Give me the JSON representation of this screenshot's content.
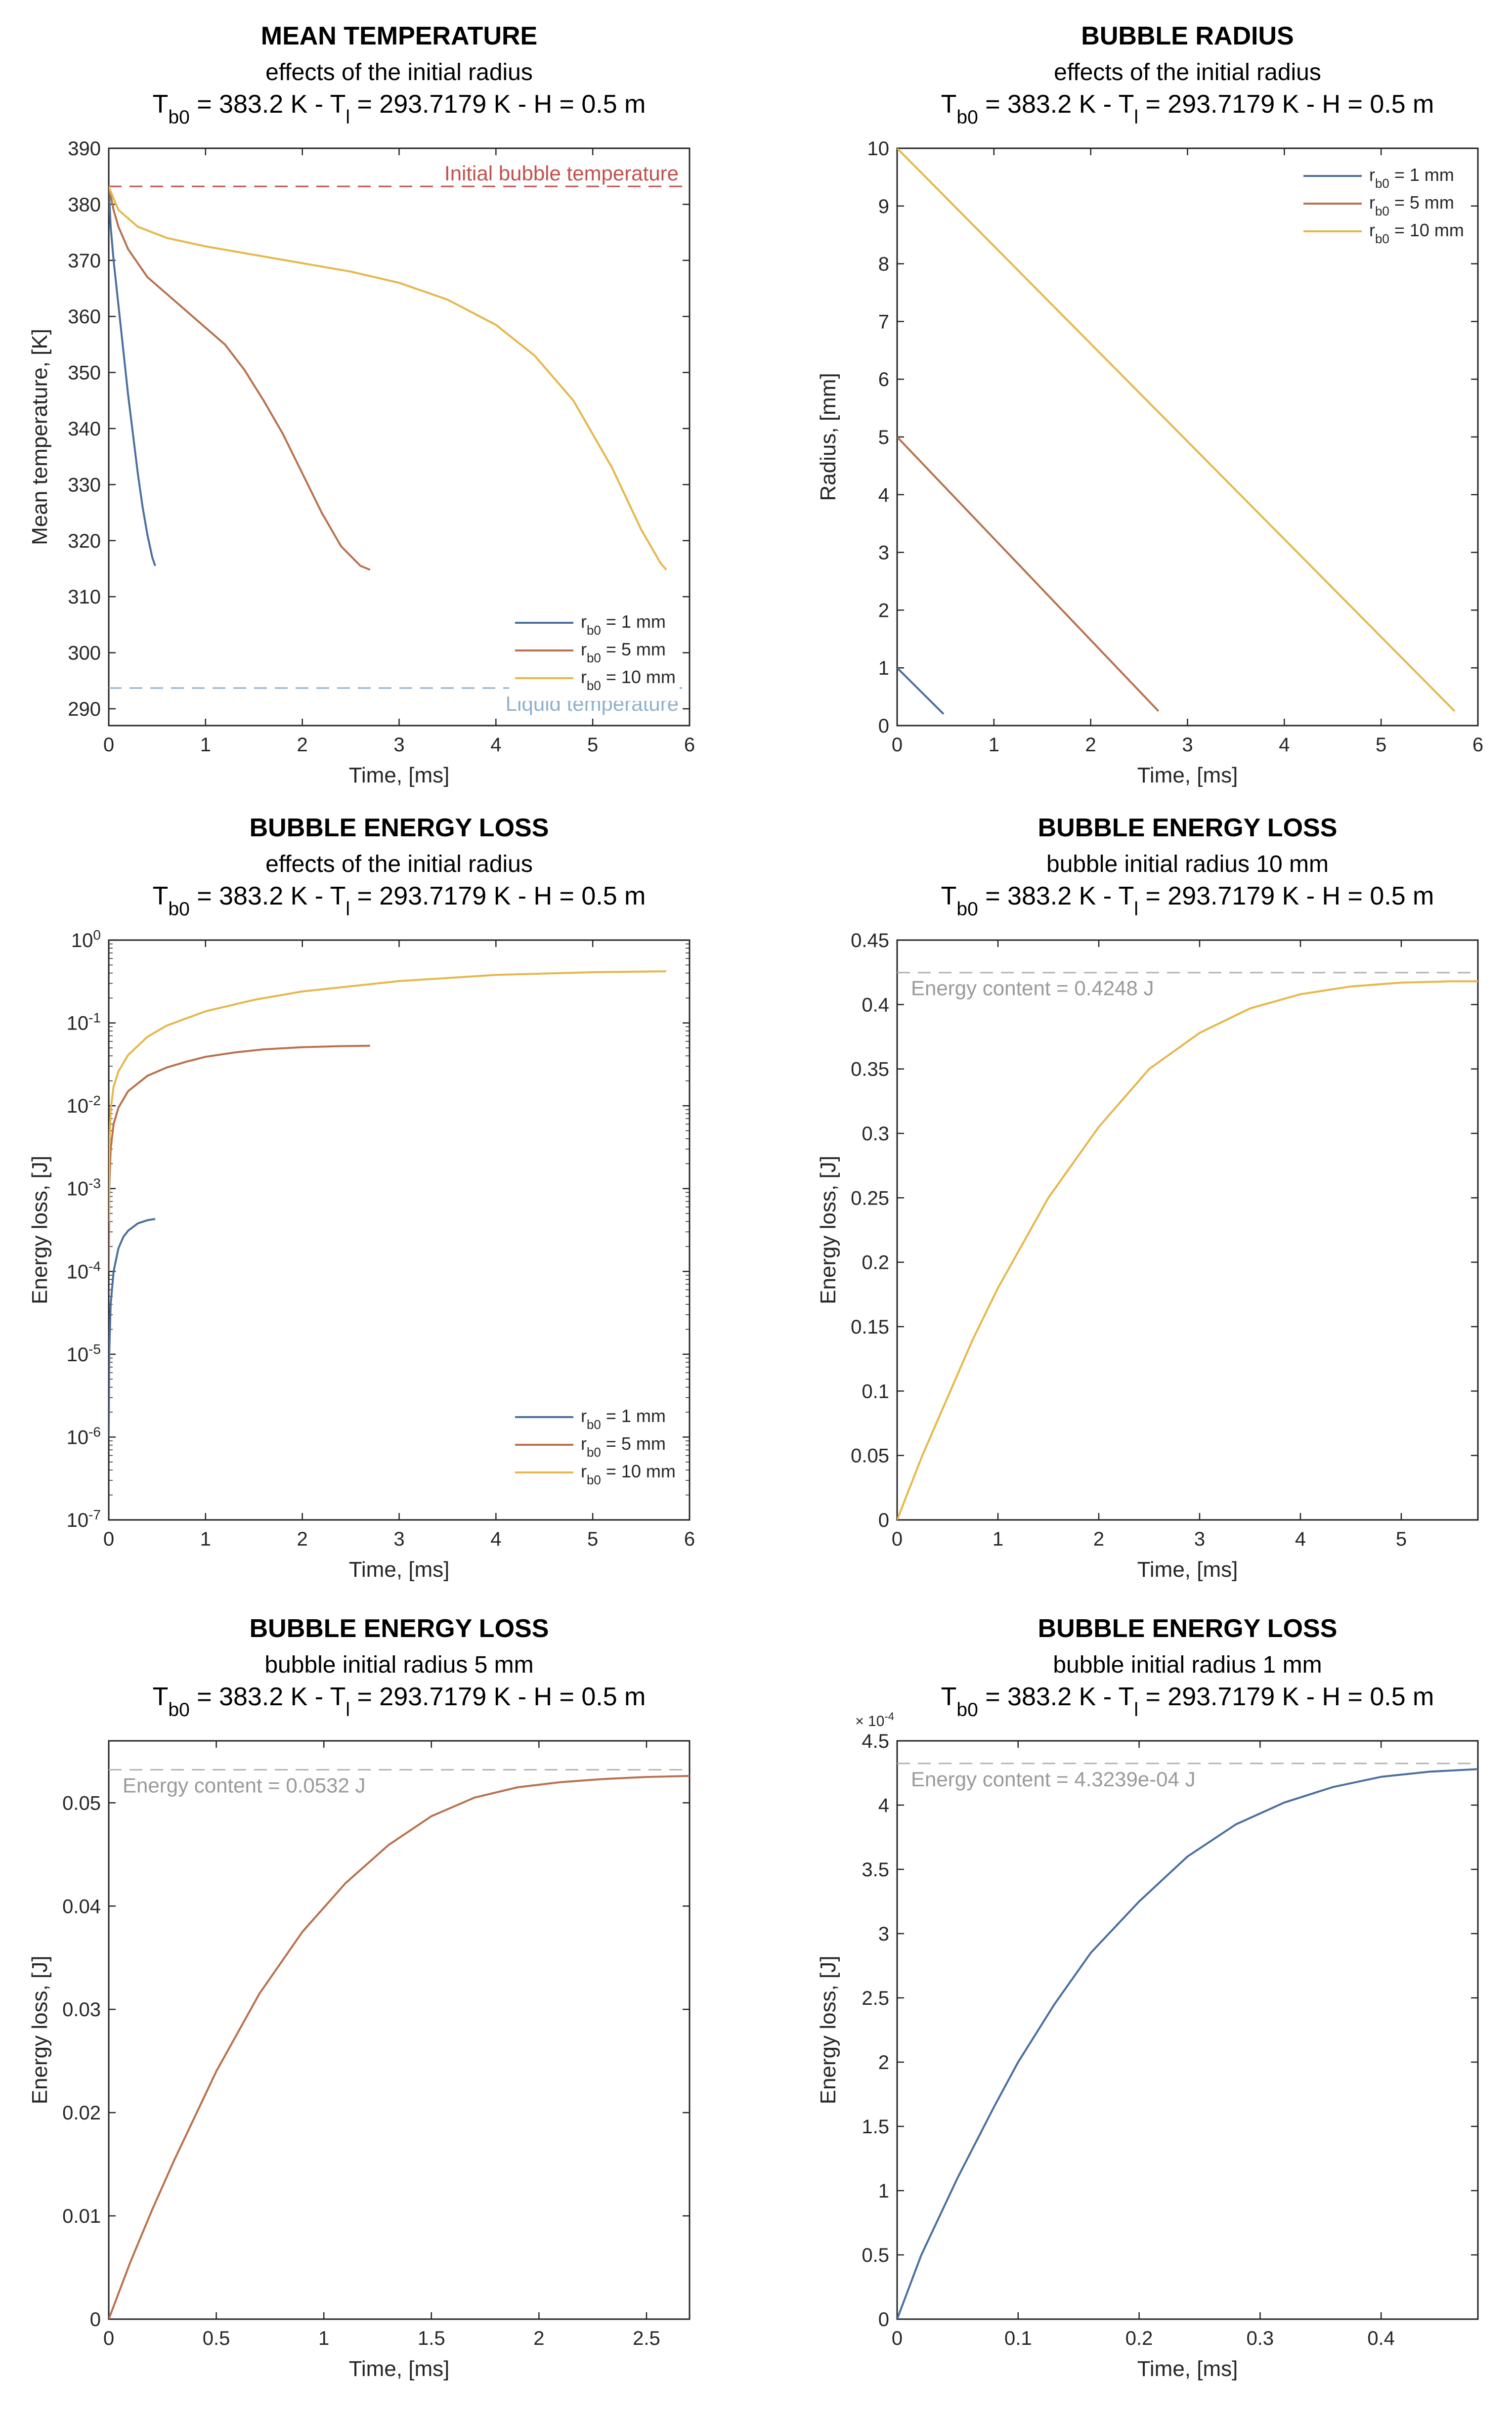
{
  "colors": {
    "blue": "#4a6f9e",
    "orange": "#b9714d",
    "yellow": "#e6b74a",
    "ref_red": "#c0504d",
    "ref_blue": "#8fb0cc",
    "ref_gray": "#b4b4b4",
    "annotation_gray": "#9a9a9a"
  },
  "chart_data": [
    {
      "id": "mean_temperature",
      "type": "line",
      "title": "MEAN TEMPERATURE",
      "subtitle": "effects of the initial radius",
      "conditions": {
        "t_sub": "b0",
        "t_val": " = 383.2 K - T",
        "l_sub": "l",
        "l_val": " = 293.7179 K  - H = 0.5 m"
      },
      "xlabel": "Time, [ms]",
      "ylabel": "Mean temperature, [K]",
      "xlim": [
        0,
        6
      ],
      "ylim": [
        287,
        390
      ],
      "yscale": "linear",
      "xticks": [
        0,
        1,
        2,
        3,
        4,
        5,
        6
      ],
      "yticks": [
        290,
        300,
        310,
        320,
        330,
        340,
        350,
        360,
        370,
        380,
        390
      ],
      "legend": {
        "position": "bottom-right",
        "entries": [
          {
            "sub": "b0",
            "suffix": " = 1 mm",
            "color": "blue"
          },
          {
            "sub": "b0",
            "suffix": " = 5 mm",
            "color": "orange"
          },
          {
            "sub": "b0",
            "suffix": " = 10 mm",
            "color": "yellow"
          }
        ]
      },
      "reference_lines": [
        {
          "y": 383.2,
          "label": "Initial bubble temperature",
          "color": "ref_red",
          "label_align": "right",
          "label_side": "above"
        },
        {
          "y": 293.7,
          "label": "Liquid temperature",
          "color": "ref_blue",
          "label_align": "right",
          "label_side": "below"
        }
      ],
      "series": [
        {
          "name": "r_b0 = 1 mm",
          "color": "blue",
          "x": [
            0,
            0.02,
            0.05,
            0.1,
            0.15,
            0.2,
            0.25,
            0.3,
            0.35,
            0.4,
            0.45,
            0.48
          ],
          "y": [
            383.2,
            376,
            370,
            362,
            354,
            346,
            339,
            332,
            326,
            321,
            317,
            315.5
          ]
        },
        {
          "name": "r_b0 = 5 mm",
          "color": "orange",
          "x": [
            0,
            0.05,
            0.1,
            0.2,
            0.4,
            0.6,
            0.8,
            1.0,
            1.2,
            1.4,
            1.6,
            1.8,
            2.0,
            2.2,
            2.4,
            2.6,
            2.7
          ],
          "y": [
            383.2,
            379,
            376,
            372,
            367,
            364,
            361,
            358,
            355,
            350.5,
            345,
            339,
            332,
            325,
            319,
            315.5,
            314.8
          ]
        },
        {
          "name": "r_b0 = 10 mm",
          "color": "yellow",
          "x": [
            0,
            0.05,
            0.1,
            0.3,
            0.6,
            1.0,
            1.5,
            2.0,
            2.5,
            3.0,
            3.5,
            4.0,
            4.4,
            4.8,
            5.2,
            5.5,
            5.7,
            5.76
          ],
          "y": [
            383.2,
            381,
            379,
            376,
            374,
            372.5,
            371,
            369.5,
            368,
            366,
            363,
            358.5,
            353,
            345,
            333,
            322,
            316,
            314.8
          ]
        }
      ]
    },
    {
      "id": "bubble_radius",
      "type": "line",
      "title": "BUBBLE RADIUS",
      "subtitle": "effects of the initial radius",
      "conditions": {
        "t_sub": "b0",
        "t_val": " = 383.2 K - T",
        "l_sub": "l",
        "l_val": " = 293.7179 K  - H = 0.5 m"
      },
      "xlabel": "Time, [ms]",
      "ylabel": "Radius, [mm]",
      "xlim": [
        0,
        6
      ],
      "ylim": [
        0,
        10
      ],
      "yscale": "linear",
      "xticks": [
        0,
        1,
        2,
        3,
        4,
        5,
        6
      ],
      "yticks": [
        0,
        1,
        2,
        3,
        4,
        5,
        6,
        7,
        8,
        9,
        10
      ],
      "legend": {
        "position": "top-right",
        "entries": [
          {
            "sub": "b0",
            "suffix": " = 1 mm",
            "color": "blue"
          },
          {
            "sub": "b0",
            "suffix": " = 5 mm",
            "color": "orange"
          },
          {
            "sub": "b0",
            "suffix": " = 10 mm",
            "color": "yellow"
          }
        ]
      },
      "series": [
        {
          "name": "r_b0 = 1 mm",
          "color": "blue",
          "x": [
            0,
            0.48
          ],
          "y": [
            1.0,
            0.2
          ]
        },
        {
          "name": "r_b0 = 5 mm",
          "color": "orange",
          "x": [
            0,
            2.7
          ],
          "y": [
            5.0,
            0.25
          ]
        },
        {
          "name": "r_b0 = 10 mm",
          "color": "yellow",
          "x": [
            0,
            5.76
          ],
          "y": [
            10.0,
            0.25
          ]
        }
      ]
    },
    {
      "id": "energy_loss_radii",
      "type": "line",
      "title": "BUBBLE ENERGY LOSS",
      "subtitle": "effects of the initial radius",
      "conditions": {
        "t_sub": "b0",
        "t_val": " = 383.2 K - T",
        "l_sub": "l",
        "l_val": " = 293.7179 K  - H = 0.5 m"
      },
      "xlabel": "Time, [ms]",
      "ylabel": "Energy loss, [J]",
      "xlim": [
        0,
        6
      ],
      "ylim": [
        -7,
        0
      ],
      "yscale": "log",
      "xticks": [
        0,
        1,
        2,
        3,
        4,
        5,
        6
      ],
      "yticks": [
        -7,
        -6,
        -5,
        -4,
        -3,
        -2,
        -1,
        0
      ],
      "legend": {
        "position": "bottom-right",
        "entries": [
          {
            "sub": "b0",
            "suffix": " = 1 mm",
            "color": "blue"
          },
          {
            "sub": "b0",
            "suffix": " = 5 mm",
            "color": "orange"
          },
          {
            "sub": "b0",
            "suffix": " = 10 mm",
            "color": "yellow"
          }
        ]
      },
      "series": [
        {
          "name": "r_b0 = 1 mm",
          "color": "blue",
          "x": [
            0.0001,
            0.005,
            0.02,
            0.05,
            0.1,
            0.15,
            0.2,
            0.3,
            0.4,
            0.48
          ],
          "y": [
            1e-06,
            1e-05,
            4e-05,
            0.0001,
            0.00019,
            0.00026,
            0.00031,
            0.00038,
            0.000415,
            0.00043
          ]
        },
        {
          "name": "r_b0 = 5 mm",
          "color": "orange",
          "x": [
            0.0001,
            0.005,
            0.02,
            0.05,
            0.1,
            0.2,
            0.4,
            0.6,
            0.8,
            1.0,
            1.3,
            1.6,
            2.0,
            2.4,
            2.7
          ],
          "y": [
            0.0001,
            0.001,
            0.003,
            0.006,
            0.0095,
            0.015,
            0.023,
            0.029,
            0.034,
            0.039,
            0.044,
            0.048,
            0.051,
            0.0525,
            0.053
          ]
        },
        {
          "name": "r_b0 = 10 mm",
          "color": "yellow",
          "x": [
            0.0001,
            0.005,
            0.02,
            0.05,
            0.1,
            0.2,
            0.4,
            0.6,
            1.0,
            1.5,
            2.0,
            3.0,
            4.0,
            5.0,
            5.76
          ],
          "y": [
            0.0004,
            0.003,
            0.009,
            0.017,
            0.026,
            0.041,
            0.068,
            0.093,
            0.138,
            0.19,
            0.24,
            0.32,
            0.38,
            0.41,
            0.42
          ]
        }
      ]
    },
    {
      "id": "energy_loss_10mm",
      "type": "line",
      "title": "BUBBLE ENERGY LOSS",
      "subtitle": "bubble initial radius 10 mm",
      "conditions": {
        "t_sub": "b0",
        "t_val": " = 383.2 K - T",
        "l_sub": "l",
        "l_val": " = 293.7179 K  - H = 0.5 m"
      },
      "xlabel": "Time, [ms]",
      "ylabel": "Energy loss, [J]",
      "xlim": [
        0,
        5.76
      ],
      "ylim": [
        0,
        0.45
      ],
      "yscale": "linear",
      "xticks": [
        0,
        1,
        2,
        3,
        4,
        5
      ],
      "yticks": [
        0,
        0.05,
        0.1,
        0.15,
        0.2,
        0.25,
        0.3,
        0.35,
        0.4,
        0.45
      ],
      "reference_lines": [
        {
          "y": 0.4248,
          "label": "Energy content = 0.4248 J",
          "color": "ref_gray",
          "label_align": "left",
          "label_side": "below"
        }
      ],
      "series": [
        {
          "name": "r_b0 = 10 mm",
          "color": "yellow",
          "x": [
            0,
            0.25,
            0.5,
            0.75,
            1.0,
            1.5,
            2.0,
            2.5,
            3.0,
            3.5,
            4.0,
            4.5,
            5.0,
            5.5,
            5.76
          ],
          "y": [
            0,
            0.05,
            0.095,
            0.14,
            0.18,
            0.25,
            0.305,
            0.35,
            0.378,
            0.397,
            0.408,
            0.414,
            0.417,
            0.418,
            0.418
          ]
        }
      ]
    },
    {
      "id": "energy_loss_5mm",
      "type": "line",
      "title": "BUBBLE ENERGY LOSS",
      "subtitle": "bubble initial radius 5 mm",
      "conditions": {
        "t_sub": "b0",
        "t_val": " = 383.2 K - T",
        "l_sub": "l",
        "l_val": " = 293.7179 K  - H = 0.5 m"
      },
      "xlabel": "Time, [ms]",
      "ylabel": "Energy loss, [J]",
      "xlim": [
        0,
        2.7
      ],
      "ylim": [
        0,
        0.056
      ],
      "yscale": "linear",
      "xticks": [
        0,
        0.5,
        1,
        1.5,
        2,
        2.5
      ],
      "yticks": [
        0,
        0.01,
        0.02,
        0.03,
        0.04,
        0.05
      ],
      "reference_lines": [
        {
          "y": 0.0532,
          "label": "Energy content = 0.0532 J",
          "color": "ref_gray",
          "label_align": "left",
          "label_side": "below"
        }
      ],
      "series": [
        {
          "name": "r_b0 = 5 mm",
          "color": "orange",
          "x": [
            0,
            0.1,
            0.2,
            0.3,
            0.5,
            0.7,
            0.9,
            1.1,
            1.3,
            1.5,
            1.7,
            1.9,
            2.1,
            2.3,
            2.5,
            2.7
          ],
          "y": [
            0,
            0.0055,
            0.0105,
            0.0152,
            0.024,
            0.0315,
            0.0375,
            0.0422,
            0.0459,
            0.0487,
            0.0505,
            0.0515,
            0.052,
            0.0523,
            0.0525,
            0.0526
          ]
        }
      ]
    },
    {
      "id": "energy_loss_1mm",
      "type": "line",
      "title": "BUBBLE ENERGY LOSS",
      "subtitle": "bubble initial radius 1 mm",
      "conditions": {
        "t_sub": "b0",
        "t_val": " = 383.2 K - T",
        "l_sub": "l",
        "l_val": " = 293.7179 K  - H = 0.5 m"
      },
      "xlabel": "Time, [ms]",
      "ylabel": "Energy loss, [J]",
      "xlim": [
        0,
        0.48
      ],
      "ylim": [
        0,
        4.5
      ],
      "y_multiplier": {
        "base": "× 10",
        "exponent": "-4"
      },
      "yscale": "linear",
      "xticks": [
        0,
        0.1,
        0.2,
        0.3,
        0.4
      ],
      "yticks": [
        0,
        0.5,
        1,
        1.5,
        2,
        2.5,
        3,
        3.5,
        4,
        4.5
      ],
      "reference_lines": [
        {
          "y": 4.3239,
          "label": "Energy content = 4.3239e-04 J",
          "color": "ref_gray",
          "label_align": "left",
          "label_side": "below"
        }
      ],
      "series": [
        {
          "name": "r_b0 = 1 mm",
          "color": "blue",
          "x": [
            0,
            0.02,
            0.05,
            0.08,
            0.1,
            0.13,
            0.16,
            0.2,
            0.24,
            0.28,
            0.32,
            0.36,
            0.4,
            0.44,
            0.48
          ],
          "y": [
            0,
            0.5,
            1.1,
            1.65,
            2.0,
            2.45,
            2.85,
            3.25,
            3.6,
            3.85,
            4.02,
            4.14,
            4.22,
            4.26,
            4.28
          ]
        }
      ]
    }
  ]
}
